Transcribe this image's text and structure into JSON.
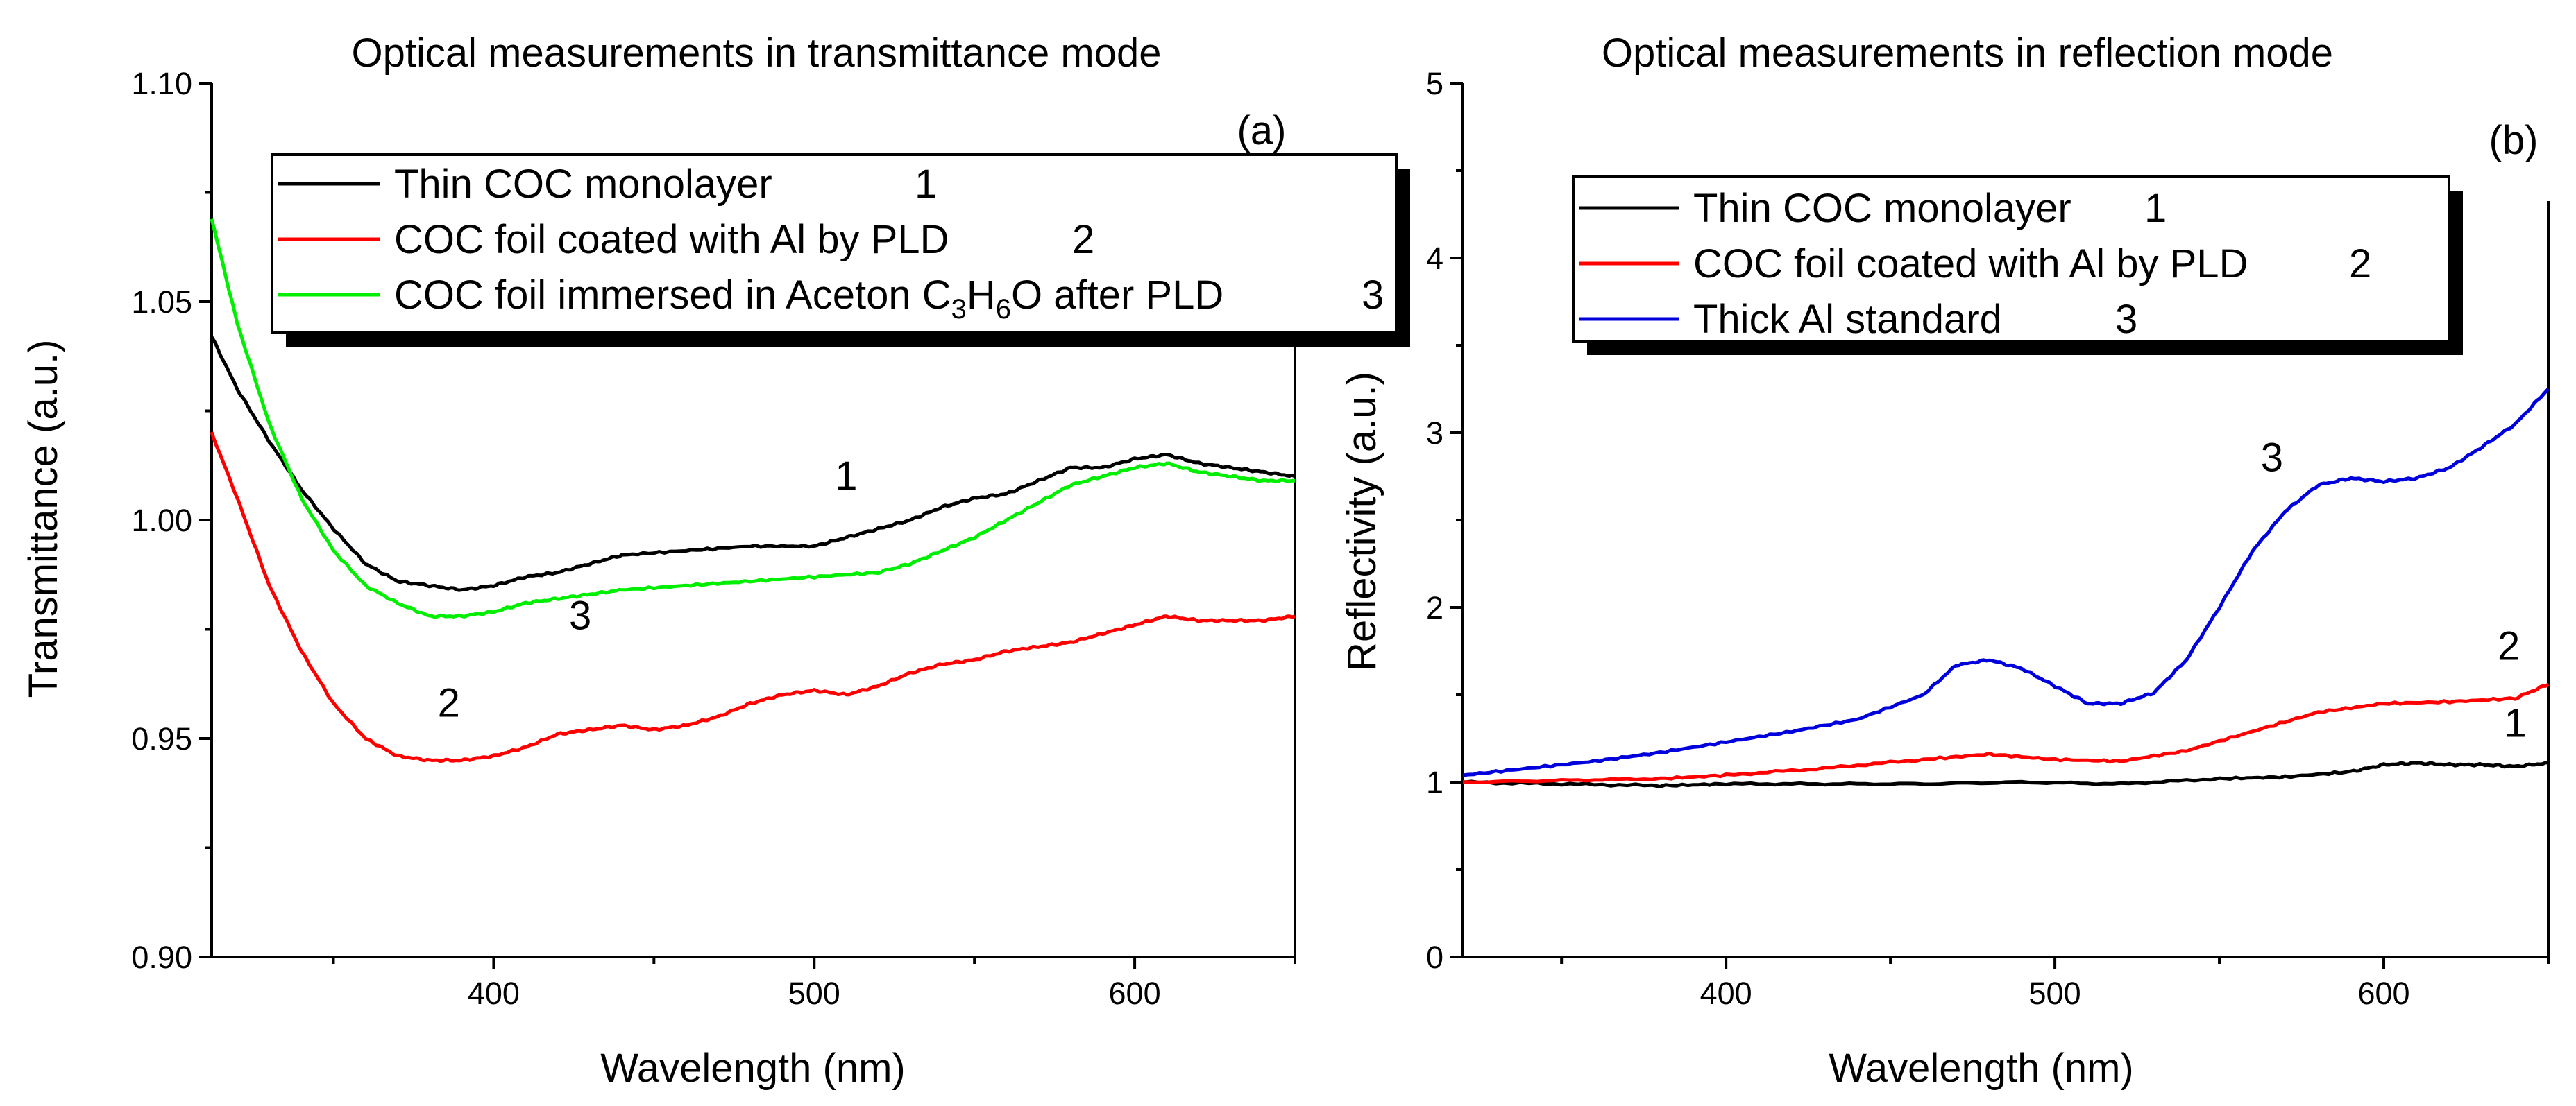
{
  "chart_data": [
    {
      "type": "line",
      "panel": "(a)",
      "title": "Optical measurements in transmittance mode",
      "xlabel": "Wavelength (nm)",
      "ylabel": "Transmittance (a.u.)",
      "xlim": [
        312,
        650
      ],
      "ylim": [
        0.9,
        1.1
      ],
      "xticks": [
        400,
        500,
        600
      ],
      "yticks": [
        0.9,
        0.95,
        1.0,
        1.05,
        1.1
      ],
      "ytick_labels": [
        "0.90",
        "0.95",
        "1.00",
        "1.05",
        "1.10"
      ],
      "legend_position": "top-center",
      "series": [
        {
          "name": "Thin COC monolayer",
          "id": "1",
          "color": "#000000",
          "x": [
            312,
            320,
            330,
            340,
            350,
            360,
            370,
            380,
            390,
            400,
            410,
            420,
            430,
            440,
            460,
            480,
            500,
            510,
            520,
            530,
            540,
            550,
            560,
            570,
            580,
            590,
            600,
            610,
            620,
            630,
            640,
            650
          ],
          "y": [
            1.042,
            1.03,
            1.018,
            1.007,
            0.998,
            0.99,
            0.986,
            0.985,
            0.984,
            0.985,
            0.987,
            0.988,
            0.99,
            0.992,
            0.993,
            0.994,
            0.994,
            0.996,
            0.998,
            1.0,
            1.003,
            1.005,
            1.006,
            1.009,
            1.012,
            1.012,
            1.014,
            1.015,
            1.013,
            1.012,
            1.011,
            1.01
          ]
        },
        {
          "name": "COC foil coated with Al by PLD",
          "id": "2",
          "color": "#ff0000",
          "x": [
            312,
            320,
            330,
            340,
            350,
            360,
            370,
            380,
            390,
            400,
            410,
            420,
            430,
            440,
            450,
            460,
            470,
            480,
            490,
            500,
            510,
            520,
            530,
            540,
            550,
            560,
            570,
            580,
            590,
            600,
            610,
            620,
            630,
            640,
            650
          ],
          "y": [
            1.02,
            1.005,
            0.985,
            0.97,
            0.958,
            0.95,
            0.946,
            0.945,
            0.945,
            0.946,
            0.948,
            0.951,
            0.952,
            0.953,
            0.952,
            0.953,
            0.955,
            0.958,
            0.96,
            0.961,
            0.96,
            0.962,
            0.965,
            0.967,
            0.968,
            0.97,
            0.971,
            0.972,
            0.974,
            0.976,
            0.978,
            0.977,
            0.977,
            0.977,
            0.978
          ]
        },
        {
          "name": "COC foil immersed in Aceton C3H6O after PLD",
          "id": "3",
          "color": "#00ee00",
          "x": [
            312,
            320,
            330,
            340,
            350,
            360,
            370,
            380,
            390,
            400,
            410,
            420,
            430,
            440,
            460,
            480,
            500,
            520,
            530,
            540,
            550,
            560,
            570,
            580,
            590,
            600,
            610,
            620,
            630,
            640,
            650
          ],
          "y": [
            1.069,
            1.045,
            1.022,
            1.005,
            0.993,
            0.985,
            0.981,
            0.978,
            0.978,
            0.979,
            0.981,
            0.982,
            0.983,
            0.984,
            0.985,
            0.986,
            0.987,
            0.988,
            0.99,
            0.993,
            0.996,
            1.0,
            1.004,
            1.008,
            1.01,
            1.012,
            1.013,
            1.011,
            1.01,
            1.009,
            1.009
          ]
        }
      ],
      "curve_labels": [
        {
          "text": "1",
          "x": 510,
          "y": 1.007
        },
        {
          "text": "2",
          "x": 386,
          "y": 0.955
        },
        {
          "text": "3",
          "x": 427,
          "y": 0.975
        }
      ]
    },
    {
      "type": "line",
      "panel": "(b)",
      "title": "Optical measurements in reflection mode",
      "xlabel": "Wavelength (nm)",
      "ylabel": "Reflectivity (a.u.)",
      "xlim": [
        320,
        650
      ],
      "ylim": [
        0,
        5
      ],
      "xticks": [
        400,
        500,
        600
      ],
      "yticks": [
        0,
        1,
        2,
        3,
        4,
        5
      ],
      "ytick_labels": [
        "0",
        "1",
        "2",
        "3",
        "4",
        "5"
      ],
      "legend_position": "top-center",
      "series": [
        {
          "name": "Thin COC monolayer",
          "id": "1",
          "color": "#000000",
          "x": [
            320,
            350,
            380,
            400,
            430,
            460,
            490,
            520,
            550,
            570,
            590,
            600,
            610,
            620,
            630,
            640,
            650
          ],
          "y": [
            1.0,
            0.99,
            0.98,
            0.99,
            0.99,
            0.99,
            1.0,
            0.99,
            1.02,
            1.03,
            1.06,
            1.1,
            1.11,
            1.1,
            1.1,
            1.09,
            1.11
          ]
        },
        {
          "name": "COC foil coated with Al by PLD",
          "id": "2",
          "color": "#ff0000",
          "x": [
            320,
            350,
            380,
            400,
            430,
            460,
            480,
            500,
            520,
            540,
            560,
            580,
            600,
            620,
            640,
            650
          ],
          "y": [
            1.0,
            1.01,
            1.02,
            1.04,
            1.08,
            1.13,
            1.16,
            1.13,
            1.12,
            1.18,
            1.29,
            1.4,
            1.45,
            1.46,
            1.48,
            1.56
          ]
        },
        {
          "name": "Thick Al standard",
          "id": "3",
          "color": "#0000dd",
          "x": [
            320,
            340,
            360,
            380,
            400,
            420,
            440,
            460,
            470,
            480,
            490,
            500,
            505,
            510,
            520,
            530,
            540,
            550,
            560,
            570,
            580,
            590,
            600,
            610,
            620,
            630,
            640,
            650
          ],
          "y": [
            1.04,
            1.08,
            1.12,
            1.17,
            1.23,
            1.29,
            1.36,
            1.5,
            1.67,
            1.7,
            1.65,
            1.55,
            1.5,
            1.45,
            1.45,
            1.51,
            1.7,
            2.0,
            2.32,
            2.55,
            2.7,
            2.74,
            2.72,
            2.74,
            2.8,
            2.92,
            3.05,
            3.25
          ]
        }
      ],
      "curve_labels": [
        {
          "text": "1",
          "x": 640,
          "y": 1.26
        },
        {
          "text": "2",
          "x": 638,
          "y": 1.7
        },
        {
          "text": "3",
          "x": 566,
          "y": 2.78
        }
      ]
    }
  ]
}
